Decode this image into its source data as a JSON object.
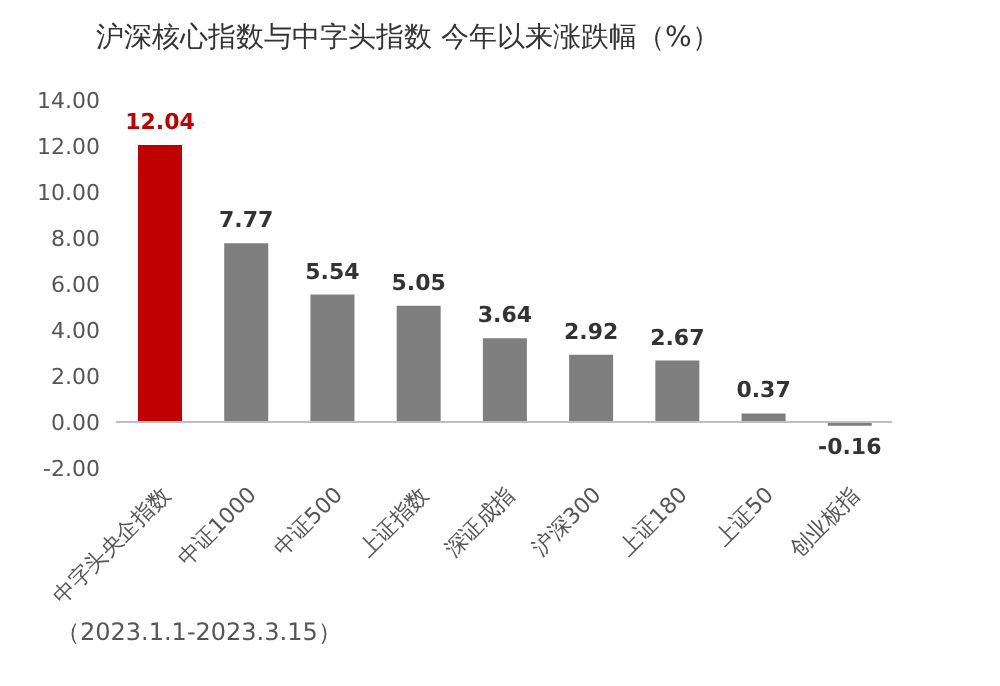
{
  "chart_data": {
    "type": "bar",
    "title": "沪深核心指数与中字头指数 今年以来涨跌幅（%）",
    "categories": [
      "中字头央企指数",
      "中证1000",
      "中证500",
      "上证指数",
      "深证成指",
      "沪深300",
      "上证180",
      "上证50",
      "创业板指"
    ],
    "values": [
      12.04,
      7.77,
      5.54,
      5.05,
      3.64,
      2.92,
      2.67,
      0.37,
      -0.16
    ],
    "colors": [
      "#c00000",
      "#7f7f7f",
      "#7f7f7f",
      "#7f7f7f",
      "#7f7f7f",
      "#7f7f7f",
      "#7f7f7f",
      "#7f7f7f",
      "#7f7f7f"
    ],
    "ylim": [
      -2,
      14
    ],
    "yticks": [
      {
        "value": -2,
        "label": "-2.00"
      },
      {
        "value": 0,
        "label": "0.00"
      },
      {
        "value": 2,
        "label": "2.00"
      },
      {
        "value": 4,
        "label": "4.00"
      },
      {
        "value": 6,
        "label": "6.00"
      },
      {
        "value": 8,
        "label": "8.00"
      },
      {
        "value": 10,
        "label": "10.00"
      },
      {
        "value": 12,
        "label": "12.00"
      },
      {
        "value": 14,
        "label": "14.00"
      }
    ],
    "data_labels": true,
    "ref_lines": [
      {
        "axis": "y",
        "value": 0,
        "color": "#bfbfbf"
      }
    ],
    "annotations": [
      "（2023.1.1-2023.3.15）"
    ]
  }
}
